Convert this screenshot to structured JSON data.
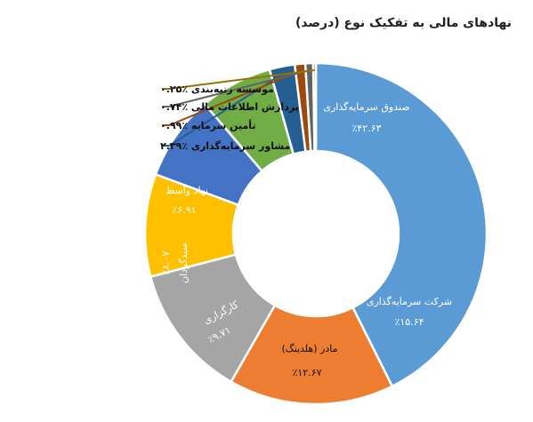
{
  "chart_data": {
    "type": "pie",
    "title": "نهادهای مالی به تفکیک نوع (درصد)",
    "slices": [
      {
        "label": "صندوق سرمایه‌گذاری",
        "value": 42.63,
        "value_text": "٪۴۲.۶۳",
        "color": "#5B9BD5",
        "text_color": "#ffffff"
      },
      {
        "label": "شرکت سرمایه‌گذاری",
        "value": 15.64,
        "value_text": "٪۱۵.۶۴",
        "color": "#ED7D31",
        "text_color": "#ffffff"
      },
      {
        "label": "مادر (هلدینگ)",
        "value": 12.67,
        "value_text": "٪۱۲.۶۷",
        "color": "#A5A5A5",
        "text_color": "#111111"
      },
      {
        "label": "کارگزاری",
        "value": 9.71,
        "value_text": "٪۹.۷۱",
        "color": "#FFC000",
        "text_color": "#ffffff"
      },
      {
        "label": "سبدگردان",
        "value": 8.07,
        "value_text": "٪۸.۰۷",
        "color": "#4472C4",
        "text_color": "#ffffff"
      },
      {
        "label": "نهاد واسط",
        "value": 6.91,
        "value_text": "٪۶.۹۱",
        "color": "#70AD47",
        "text_color": "#ffffff"
      },
      {
        "label": "مشاور سرمایه‌گذاری",
        "value": 2.39,
        "value_text": "٪۲.۳۹",
        "color": "#255E91",
        "text_color": "#111111"
      },
      {
        "label": "تأمین سرمایه",
        "value": 0.99,
        "value_text": "٪۰.۹۹",
        "color": "#9E480E",
        "text_color": "#111111"
      },
      {
        "label": "پردازش اطلاعات مالی",
        "value": 0.74,
        "value_text": "٪۰.۷۴",
        "color": "#636363",
        "text_color": "#111111"
      },
      {
        "label": "موسسه رتبه‌بندی",
        "value": 0.25,
        "value_text": "٪۰.۲۵",
        "color": "#997300",
        "text_color": "#111111"
      }
    ]
  }
}
